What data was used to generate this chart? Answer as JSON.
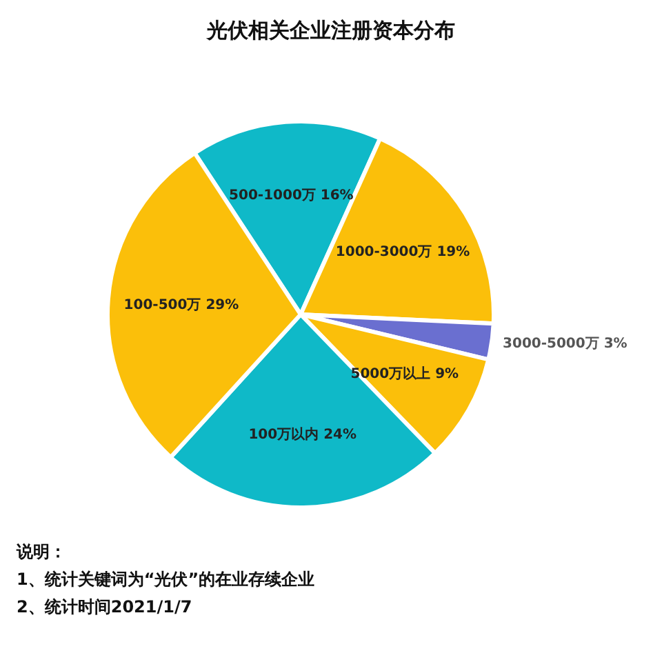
{
  "chart_data": {
    "type": "pie",
    "title": "光伏相关企业注册资本分布",
    "categories": [
      "500-1000万",
      "1000-3000万",
      "3000-5000万",
      "5000万以上",
      "100万以内",
      "100-500万"
    ],
    "values": [
      16,
      19,
      3,
      9,
      24,
      29
    ],
    "value_labels": [
      "16%",
      "19%",
      "3%",
      "9%",
      "24%",
      "29%"
    ],
    "colors": [
      "#0fb9c8",
      "#fbbf0a",
      "#6a6fd0",
      "#fbbf0a",
      "#0fb9c8",
      "#fbbf0a"
    ],
    "annotations": [
      "说明：",
      "1、统计关键词为“光伏”的在业存续企业",
      "2、统计时间2021/1/7"
    ]
  }
}
